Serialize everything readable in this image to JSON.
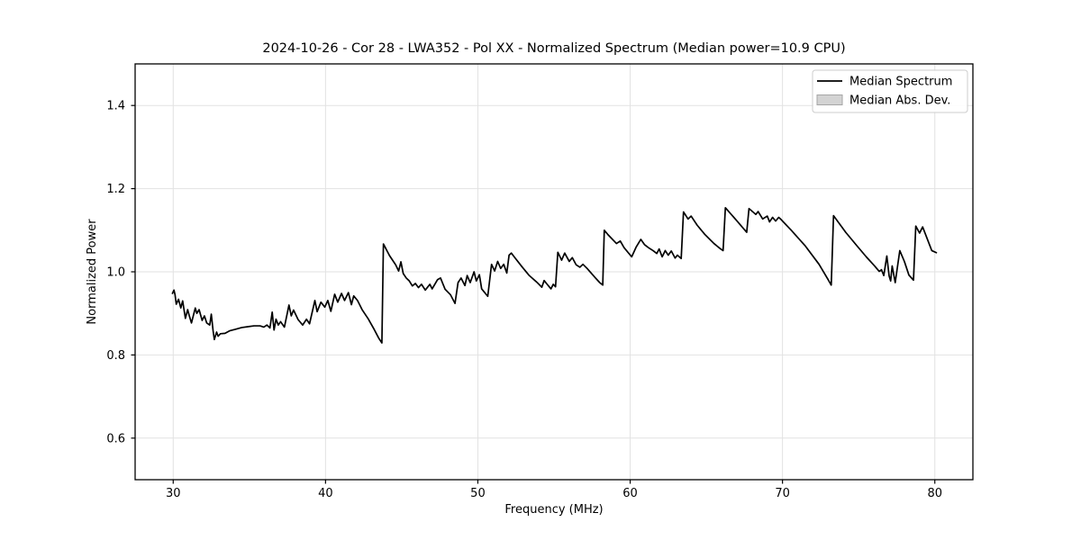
{
  "chart_data": {
    "type": "line",
    "title": "2024-10-26 - Cor 28 - LWA352 - Pol XX - Normalized Spectrum (Median power=10.9 CPU)",
    "xlabel": "Frequency (MHz)",
    "ylabel": "Normalized Power",
    "xlim": [
      27.5,
      82.5
    ],
    "ylim": [
      0.5,
      1.5
    ],
    "x_ticks": [
      30,
      40,
      50,
      60,
      70,
      80
    ],
    "y_ticks": [
      0.6,
      0.8,
      1.0,
      1.2,
      1.4
    ],
    "grid": true,
    "grid_color": "#e2e2e2",
    "frame_color": "#000000",
    "legend": {
      "position": "upper right",
      "entries": [
        {
          "label": "Median Spectrum",
          "type": "line",
          "color": "#000000"
        },
        {
          "label": "Median Abs. Dev.",
          "type": "patch",
          "color": "#d3d3d3",
          "edge_color": "#a6a6a6"
        }
      ]
    },
    "series": [
      {
        "name": "Median Spectrum",
        "color": "#000000",
        "points": [
          [
            29.95,
            0.948
          ],
          [
            30.05,
            0.956
          ],
          [
            30.12,
            0.945
          ],
          [
            30.2,
            0.922
          ],
          [
            30.35,
            0.934
          ],
          [
            30.5,
            0.913
          ],
          [
            30.62,
            0.93
          ],
          [
            30.8,
            0.888
          ],
          [
            30.95,
            0.909
          ],
          [
            31.05,
            0.895
          ],
          [
            31.2,
            0.877
          ],
          [
            31.45,
            0.913
          ],
          [
            31.55,
            0.9
          ],
          [
            31.7,
            0.909
          ],
          [
            31.9,
            0.883
          ],
          [
            32.05,
            0.894
          ],
          [
            32.2,
            0.877
          ],
          [
            32.4,
            0.872
          ],
          [
            32.5,
            0.898
          ],
          [
            32.62,
            0.858
          ],
          [
            32.7,
            0.837
          ],
          [
            32.85,
            0.855
          ],
          [
            32.95,
            0.845
          ],
          [
            33.1,
            0.851
          ],
          [
            33.4,
            0.852
          ],
          [
            33.7,
            0.858
          ],
          [
            34.1,
            0.862
          ],
          [
            34.5,
            0.866
          ],
          [
            34.9,
            0.868
          ],
          [
            35.3,
            0.87
          ],
          [
            35.7,
            0.87
          ],
          [
            35.95,
            0.867
          ],
          [
            36.15,
            0.872
          ],
          [
            36.35,
            0.865
          ],
          [
            36.5,
            0.903
          ],
          [
            36.62,
            0.86
          ],
          [
            36.75,
            0.886
          ],
          [
            36.9,
            0.872
          ],
          [
            37.05,
            0.88
          ],
          [
            37.3,
            0.867
          ],
          [
            37.6,
            0.92
          ],
          [
            37.75,
            0.894
          ],
          [
            37.9,
            0.908
          ],
          [
            38.2,
            0.885
          ],
          [
            38.5,
            0.872
          ],
          [
            38.75,
            0.886
          ],
          [
            38.95,
            0.875
          ],
          [
            39.3,
            0.931
          ],
          [
            39.45,
            0.904
          ],
          [
            39.7,
            0.927
          ],
          [
            39.95,
            0.915
          ],
          [
            40.15,
            0.931
          ],
          [
            40.35,
            0.905
          ],
          [
            40.6,
            0.946
          ],
          [
            40.8,
            0.927
          ],
          [
            41.05,
            0.948
          ],
          [
            41.25,
            0.931
          ],
          [
            41.5,
            0.95
          ],
          [
            41.7,
            0.921
          ],
          [
            41.85,
            0.942
          ],
          [
            42.1,
            0.931
          ],
          [
            42.4,
            0.909
          ],
          [
            42.8,
            0.887
          ],
          [
            43.2,
            0.861
          ],
          [
            43.5,
            0.84
          ],
          [
            43.7,
            0.829
          ],
          [
            43.8,
            1.067
          ],
          [
            44.2,
            1.039
          ],
          [
            44.6,
            1.017
          ],
          [
            44.8,
            1.002
          ],
          [
            44.95,
            1.024
          ],
          [
            45.1,
            0.996
          ],
          [
            45.3,
            0.985
          ],
          [
            45.5,
            0.978
          ],
          [
            45.7,
            0.966
          ],
          [
            45.9,
            0.972
          ],
          [
            46.1,
            0.962
          ],
          [
            46.3,
            0.97
          ],
          [
            46.55,
            0.956
          ],
          [
            46.85,
            0.97
          ],
          [
            47.0,
            0.959
          ],
          [
            47.35,
            0.981
          ],
          [
            47.55,
            0.985
          ],
          [
            47.85,
            0.958
          ],
          [
            48.2,
            0.945
          ],
          [
            48.5,
            0.924
          ],
          [
            48.7,
            0.974
          ],
          [
            48.9,
            0.985
          ],
          [
            49.15,
            0.967
          ],
          [
            49.3,
            0.991
          ],
          [
            49.5,
            0.974
          ],
          [
            49.75,
            1.0
          ],
          [
            49.9,
            0.978
          ],
          [
            50.1,
            0.993
          ],
          [
            50.25,
            0.959
          ],
          [
            50.65,
            0.941
          ],
          [
            50.9,
            1.018
          ],
          [
            51.1,
            1.002
          ],
          [
            51.3,
            1.025
          ],
          [
            51.5,
            1.008
          ],
          [
            51.7,
            1.018
          ],
          [
            51.9,
            0.997
          ],
          [
            52.05,
            1.04
          ],
          [
            52.2,
            1.045
          ],
          [
            52.45,
            1.033
          ],
          [
            52.9,
            1.012
          ],
          [
            53.35,
            0.992
          ],
          [
            53.9,
            0.974
          ],
          [
            54.2,
            0.963
          ],
          [
            54.35,
            0.979
          ],
          [
            54.55,
            0.97
          ],
          [
            54.8,
            0.959
          ],
          [
            54.95,
            0.97
          ],
          [
            55.1,
            0.964
          ],
          [
            55.25,
            1.047
          ],
          [
            55.5,
            1.028
          ],
          [
            55.7,
            1.045
          ],
          [
            56.0,
            1.025
          ],
          [
            56.2,
            1.034
          ],
          [
            56.45,
            1.017
          ],
          [
            56.7,
            1.011
          ],
          [
            56.9,
            1.018
          ],
          [
            57.2,
            1.007
          ],
          [
            57.7,
            0.986
          ],
          [
            58.0,
            0.974
          ],
          [
            58.2,
            0.968
          ],
          [
            58.3,
            1.1
          ],
          [
            58.55,
            1.089
          ],
          [
            59.1,
            1.068
          ],
          [
            59.35,
            1.074
          ],
          [
            59.6,
            1.058
          ],
          [
            60.1,
            1.036
          ],
          [
            60.4,
            1.06
          ],
          [
            60.7,
            1.078
          ],
          [
            60.95,
            1.065
          ],
          [
            61.2,
            1.058
          ],
          [
            61.5,
            1.051
          ],
          [
            61.75,
            1.044
          ],
          [
            61.9,
            1.055
          ],
          [
            62.1,
            1.036
          ],
          [
            62.3,
            1.051
          ],
          [
            62.5,
            1.04
          ],
          [
            62.7,
            1.05
          ],
          [
            62.95,
            1.033
          ],
          [
            63.1,
            1.04
          ],
          [
            63.35,
            1.032
          ],
          [
            63.5,
            1.144
          ],
          [
            63.8,
            1.127
          ],
          [
            64.0,
            1.134
          ],
          [
            64.4,
            1.112
          ],
          [
            64.9,
            1.09
          ],
          [
            65.5,
            1.068
          ],
          [
            65.9,
            1.056
          ],
          [
            66.1,
            1.051
          ],
          [
            66.25,
            1.154
          ],
          [
            66.9,
            1.127
          ],
          [
            67.3,
            1.11
          ],
          [
            67.65,
            1.095
          ],
          [
            67.8,
            1.152
          ],
          [
            68.25,
            1.138
          ],
          [
            68.4,
            1.145
          ],
          [
            68.7,
            1.127
          ],
          [
            69.0,
            1.134
          ],
          [
            69.15,
            1.12
          ],
          [
            69.35,
            1.131
          ],
          [
            69.55,
            1.122
          ],
          [
            69.75,
            1.131
          ],
          [
            69.9,
            1.126
          ],
          [
            70.6,
            1.099
          ],
          [
            71.5,
            1.062
          ],
          [
            72.4,
            1.018
          ],
          [
            73.0,
            0.981
          ],
          [
            73.2,
            0.968
          ],
          [
            73.35,
            1.135
          ],
          [
            74.15,
            1.095
          ],
          [
            74.9,
            1.062
          ],
          [
            75.5,
            1.036
          ],
          [
            76.05,
            1.014
          ],
          [
            76.35,
            1.001
          ],
          [
            76.5,
            1.005
          ],
          [
            76.65,
            0.991
          ],
          [
            76.85,
            1.038
          ],
          [
            77.0,
            0.99
          ],
          [
            77.1,
            0.978
          ],
          [
            77.2,
            1.014
          ],
          [
            77.4,
            0.974
          ],
          [
            77.7,
            1.051
          ],
          [
            78.0,
            1.025
          ],
          [
            78.3,
            0.992
          ],
          [
            78.6,
            0.98
          ],
          [
            78.75,
            1.11
          ],
          [
            79.0,
            1.093
          ],
          [
            79.2,
            1.108
          ],
          [
            79.8,
            1.051
          ],
          [
            80.1,
            1.046
          ]
        ]
      }
    ]
  }
}
